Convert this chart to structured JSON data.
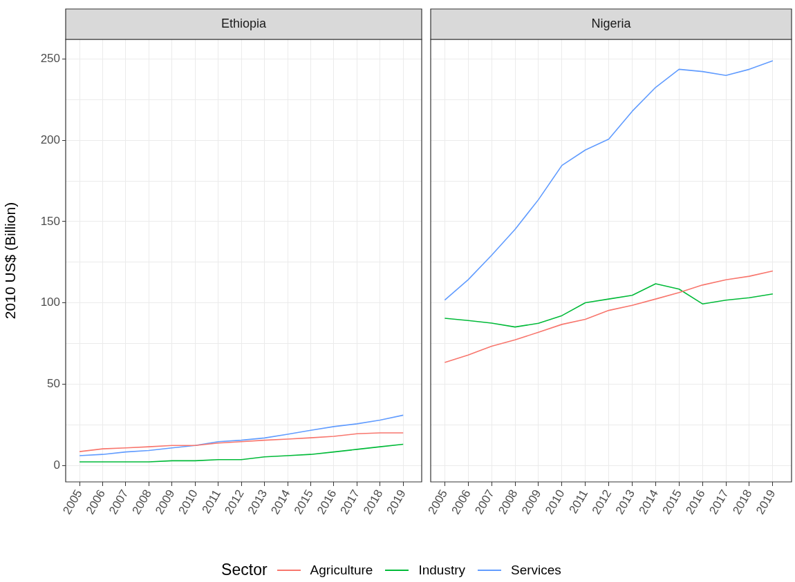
{
  "chart_data": [
    {
      "type": "line",
      "title": "Ethiopia",
      "ylabel": "2010 US$ (Billion)",
      "legend_title": "Sector",
      "legend": "bottom",
      "grid": true,
      "x": [
        2005,
        2006,
        2007,
        2008,
        2009,
        2010,
        2011,
        2012,
        2013,
        2014,
        2015,
        2016,
        2017,
        2018,
        2019
      ],
      "xlim": [
        2004.4,
        2019.8
      ],
      "xticks": [
        2005,
        2006,
        2007,
        2008,
        2009,
        2010,
        2011,
        2012,
        2013,
        2014,
        2015,
        2016,
        2017,
        2018,
        2019
      ],
      "ylim": [
        -10,
        262
      ],
      "yticks": [
        0,
        {
          "value": 25,
          "label": null
        },
        50,
        {
          "value": 75,
          "label": null
        },
        100,
        {
          "value": 125,
          "label": null
        },
        150,
        {
          "value": 175,
          "label": null
        },
        200,
        {
          "value": 225,
          "label": null
        },
        250
      ],
      "series": [
        {
          "name": "Agriculture",
          "color": "#f8766d",
          "values": [
            8.6,
            10.3,
            10.9,
            11.6,
            12.4,
            12.4,
            13.9,
            14.7,
            15.6,
            16.3,
            17.1,
            18.0,
            19.6,
            20.1,
            20.1
          ]
        },
        {
          "name": "Industry",
          "color": "#00ba38",
          "values": [
            2.3,
            2.3,
            2.3,
            2.3,
            3.0,
            3.0,
            3.7,
            3.7,
            5.4,
            6.1,
            6.9,
            8.4,
            10.0,
            11.6,
            13.1
          ]
        },
        {
          "name": "Services",
          "color": "#619cff",
          "values": [
            6.1,
            6.9,
            8.4,
            9.3,
            10.9,
            12.4,
            14.7,
            15.6,
            17.0,
            19.3,
            21.7,
            24.0,
            25.7,
            28.0,
            31.0
          ]
        }
      ]
    },
    {
      "type": "line",
      "title": "Nigeria",
      "tick_labels": "x",
      "grid": true,
      "x": [
        2005,
        2006,
        2007,
        2008,
        2009,
        2010,
        2011,
        2012,
        2013,
        2014,
        2015,
        2016,
        2017,
        2018,
        2019
      ],
      "xlim": [
        2004.4,
        2019.8
      ],
      "xticks": [
        2005,
        2006,
        2007,
        2008,
        2009,
        2010,
        2011,
        2012,
        2013,
        2014,
        2015,
        2016,
        2017,
        2018,
        2019
      ],
      "ylim": [
        -10,
        262
      ],
      "yticks": [
        0,
        {
          "value": 25,
          "label": null
        },
        50,
        {
          "value": 75,
          "label": null
        },
        100,
        {
          "value": 125,
          "label": null
        },
        150,
        {
          "value": 175,
          "label": null
        },
        200,
        {
          "value": 225,
          "label": null
        },
        250
      ],
      "series": [
        {
          "name": "Agriculture",
          "color": "#f8766d",
          "values": [
            63.4,
            68.0,
            73.4,
            77.3,
            82.0,
            86.8,
            89.9,
            95.4,
            98.5,
            102.4,
            106.4,
            111.0,
            114.2,
            116.4,
            119.6
          ]
        },
        {
          "name": "Industry",
          "color": "#00ba38",
          "values": [
            90.6,
            89.2,
            87.6,
            85.2,
            87.5,
            92.2,
            100.1,
            102.4,
            104.7,
            111.8,
            108.5,
            99.4,
            101.7,
            103.2,
            105.5
          ]
        },
        {
          "name": "Services",
          "color": "#619cff",
          "values": [
            101.8,
            114.3,
            129.3,
            145.2,
            163.5,
            184.5,
            194.0,
            200.7,
            217.8,
            232.5,
            243.6,
            242.2,
            239.8,
            243.6,
            248.8
          ]
        }
      ]
    }
  ]
}
